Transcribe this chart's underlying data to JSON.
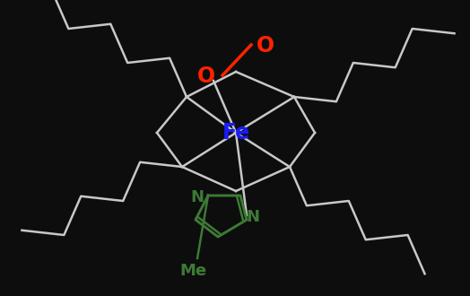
{
  "bg_color": "#0d0d0d",
  "fe_color": "#1a1aff",
  "o_color": "#ff2200",
  "imidazole_color": "#3d7a35",
  "line_color": "#c8c8c8",
  "fe_label": "Fe",
  "o1_label": "O",
  "o2_label": "O",
  "me_label": "Me",
  "n_label": "N",
  "figsize": [
    5.24,
    3.3
  ],
  "dpi": 100
}
